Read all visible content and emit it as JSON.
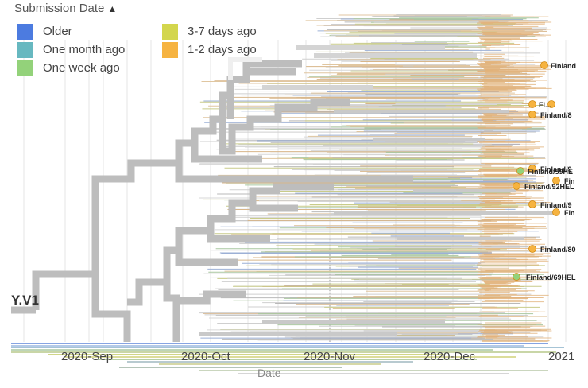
{
  "legend": {
    "title": "Submission Date",
    "items": [
      {
        "label": "Older",
        "color": "#4c7be0"
      },
      {
        "label": "One month ago",
        "color": "#67b8c0"
      },
      {
        "label": "One week ago",
        "color": "#93d27a"
      },
      {
        "label": "3-7 days ago",
        "color": "#d3d64d"
      },
      {
        "label": "1-2 days ago",
        "color": "#f6b340"
      }
    ]
  },
  "axis": {
    "title": "Date",
    "ticks": [
      "2020-Sep",
      "2020-Oct",
      "2020-Nov",
      "2020-Dec",
      "2021"
    ]
  },
  "clade_label": "Y.V1",
  "tips": [
    {
      "label": "Finland",
      "color": "#f6b340"
    },
    {
      "label": "Fi...",
      "color": "#f6b340"
    },
    {
      "label": "Finland/8",
      "color": "#f6b340"
    },
    {
      "label": "Finland/9",
      "color": "#f6b340"
    },
    {
      "label": "Finland/59HE",
      "color": "#93d27a"
    },
    {
      "label": "Fin",
      "color": "#f6b340"
    },
    {
      "label": "Finland/92HEL",
      "color": "#f6b340"
    },
    {
      "label": "Finland/9",
      "color": "#f6b340"
    },
    {
      "label": "Fin",
      "color": "#f6b340"
    },
    {
      "label": "Finland/80",
      "color": "#f6b340"
    },
    {
      "label": "Finland/69HEL",
      "color": "#93d27a"
    }
  ]
}
